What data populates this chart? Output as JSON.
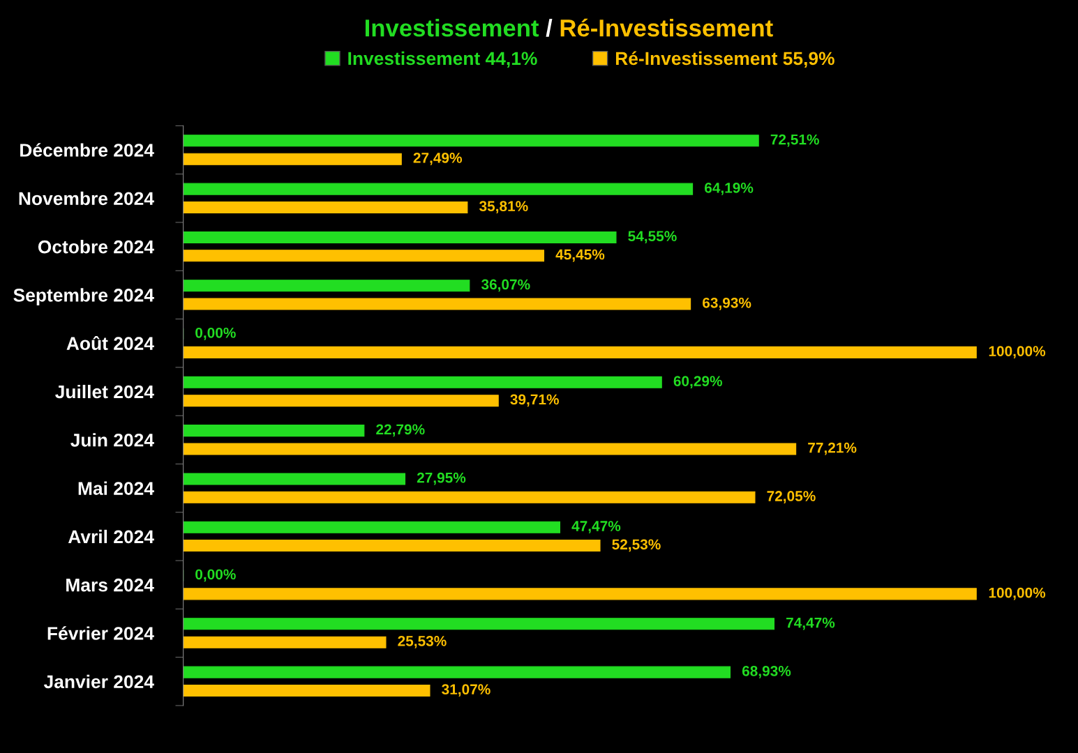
{
  "chart_data": {
    "type": "bar",
    "orientation": "horizontal",
    "title": "Investissement / Ré-Investissement",
    "categories": [
      "Décembre 2024",
      "Novembre 2024",
      "Octobre 2024",
      "Septembre 2024",
      "Août 2024",
      "Juillet 2024",
      "Juin 2024",
      "Mai 2024",
      "Avril 2024",
      "Mars 2024",
      "Février 2024",
      "Janvier 2024"
    ],
    "series": [
      {
        "name": "Investissement 44,1%",
        "color": "#22dd22",
        "values": [
          72.51,
          64.19,
          54.55,
          36.07,
          0.0,
          60.29,
          22.79,
          27.95,
          47.47,
          0.0,
          74.47,
          68.93
        ],
        "value_labels": [
          "72,51%",
          "64,19%",
          "54,55%",
          "36,07%",
          "0,00%",
          "60,29%",
          "22,79%",
          "27,95%",
          "47,47%",
          "0,00%",
          "74,47%",
          "68,93%"
        ]
      },
      {
        "name": "Ré-Investissement 55,9%",
        "color": "#ffc000",
        "values": [
          27.49,
          35.81,
          45.45,
          63.93,
          100.0,
          39.71,
          77.21,
          72.05,
          52.53,
          100.0,
          25.53,
          31.07
        ],
        "value_labels": [
          "27,49%",
          "35,81%",
          "45,45%",
          "63,93%",
          "100,00%",
          "39,71%",
          "77,21%",
          "72,05%",
          "52,53%",
          "100,00%",
          "25,53%",
          "31,07%"
        ]
      }
    ],
    "xlim": [
      0,
      100
    ],
    "tick_labels": "y",
    "legend": "top",
    "grid": false
  }
}
